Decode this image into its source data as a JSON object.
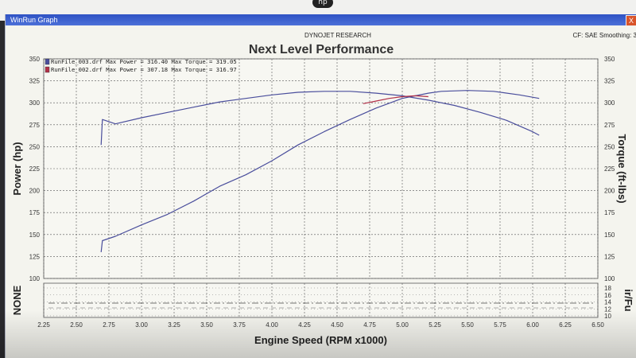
{
  "window": {
    "title": "WinRun Graph",
    "close_label": "X",
    "brand": "DYNOJET RESEARCH",
    "settings": "CF: SAE  Smoothing: 3"
  },
  "monitor": {
    "logo": "hp"
  },
  "chart_data": {
    "type": "line",
    "title": "Next Level Performance",
    "xlabel": "Engine Speed (RPM x1000)",
    "ylabel": "Power (hp)",
    "y2label": "Torque (ft-lbs)",
    "xlim": [
      2.25,
      6.5
    ],
    "ylim": [
      100,
      350
    ],
    "y2lim": [
      100,
      350
    ],
    "x_ticks": [
      "2.25",
      "2.50",
      "2.75",
      "3.00",
      "3.25",
      "3.50",
      "3.75",
      "4.00",
      "4.25",
      "4.50",
      "4.75",
      "5.00",
      "5.25",
      "5.50",
      "5.75",
      "6.00",
      "6.25",
      "6.50"
    ],
    "y_ticks": [
      "350",
      "325",
      "300",
      "275",
      "250",
      "225",
      "200",
      "175",
      "150",
      "125",
      "100"
    ],
    "y2_ticks": [
      "350",
      "325",
      "300",
      "275",
      "250",
      "225",
      "200",
      "175",
      "150",
      "125",
      "100"
    ],
    "grid": true,
    "legend_placement": "top-left",
    "legend": [
      "RunFile_003.drf Max Power = 316.40 Max Torque = 319.05",
      "RunFile_002.drf Max Power = 307.18 Max Torque = 316.97"
    ],
    "series_colors": [
      "#4a4e9c",
      "#b23048"
    ],
    "series": [
      {
        "name": "RunFile_003.drf Power",
        "color": "#4a4e9c",
        "x": [
          2.69,
          2.7,
          2.8,
          3.0,
          3.2,
          3.4,
          3.6,
          3.8,
          4.0,
          4.2,
          4.4,
          4.6,
          4.8,
          5.0,
          5.2,
          5.3,
          5.5,
          5.7,
          5.9,
          6.05
        ],
        "y": [
          130,
          143,
          148,
          161,
          173,
          188,
          205,
          218,
          234,
          252,
          267,
          281,
          294,
          305,
          311,
          313,
          314,
          313,
          309,
          305
        ]
      },
      {
        "name": "RunFile_003.drf Torque",
        "color": "#4a4e9c",
        "x": [
          2.69,
          2.7,
          2.8,
          3.0,
          3.2,
          3.4,
          3.6,
          3.8,
          4.0,
          4.2,
          4.4,
          4.6,
          4.8,
          5.0,
          5.2,
          5.4,
          5.6,
          5.8,
          6.0,
          6.05
        ],
        "y": [
          252,
          281,
          276,
          283,
          289,
          295,
          301,
          305,
          309,
          312,
          313,
          313,
          311,
          308,
          303,
          297,
          289,
          280,
          267,
          263
        ]
      },
      {
        "name": "RunFile_002.drf Power",
        "color": "#b23048",
        "x": [
          4.7,
          4.8,
          4.9,
          5.0,
          5.1,
          5.2
        ],
        "y": [
          299,
          302,
          305,
          307,
          308,
          307
        ]
      }
    ]
  },
  "lower_panel": {
    "left_label": "NONE",
    "right_label": "ir/Fu",
    "y_ticks": [
      "18",
      "16",
      "14",
      "12",
      "10"
    ]
  }
}
